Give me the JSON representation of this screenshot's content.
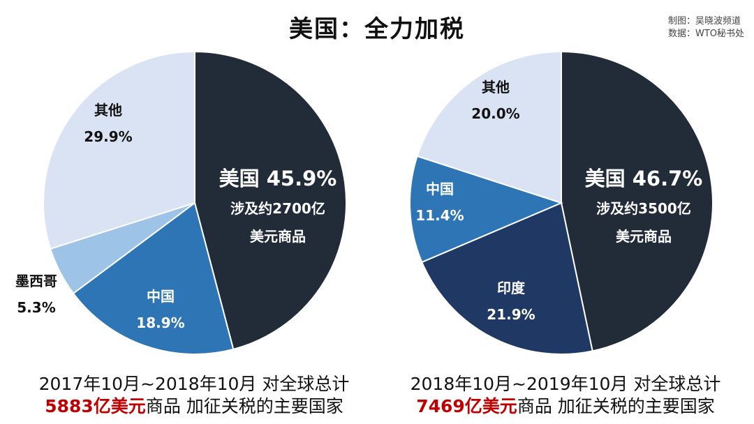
{
  "title": "美国：全力加税",
  "credits": {
    "line1": "制图：吴晓波频道",
    "line2": "数据：WTO秘书处"
  },
  "chart_data": [
    {
      "type": "pie",
      "slices": [
        {
          "name": "美国",
          "value": 45.9,
          "label": "45.9%",
          "color": "#222b38",
          "sub1": "涉及约2700亿",
          "sub2": "美元商品"
        },
        {
          "name": "中国",
          "value": 18.9,
          "label": "18.9%",
          "color": "#2e75b6"
        },
        {
          "name": "墨西哥",
          "value": 5.3,
          "label": "5.3%",
          "color": "#9dc3e6"
        },
        {
          "name": "其他",
          "value": 29.9,
          "label": "29.9%",
          "color": "#dae3f3"
        }
      ],
      "caption": {
        "line1": "2017年10月~2018年10月 对全球总计",
        "amount": "5883亿美元",
        "rest": "商品 加征关税的主要国家"
      }
    },
    {
      "type": "pie",
      "slices": [
        {
          "name": "美国",
          "value": 46.7,
          "label": "46.7%",
          "color": "#222b38",
          "sub1": "涉及约3500亿",
          "sub2": "美元商品"
        },
        {
          "name": "印度",
          "value": 21.9,
          "label": "21.9%",
          "color": "#1f3864"
        },
        {
          "name": "中国",
          "value": 11.4,
          "label": "11.4%",
          "color": "#2e75b6"
        },
        {
          "name": "其他",
          "value": 20.0,
          "label": "20.0%",
          "color": "#dae3f3"
        }
      ],
      "caption": {
        "line1": "2018年10月~2019年10月 对全球总计",
        "amount": "7469亿美元",
        "rest": "商品 加征关税的主要国家"
      }
    }
  ]
}
